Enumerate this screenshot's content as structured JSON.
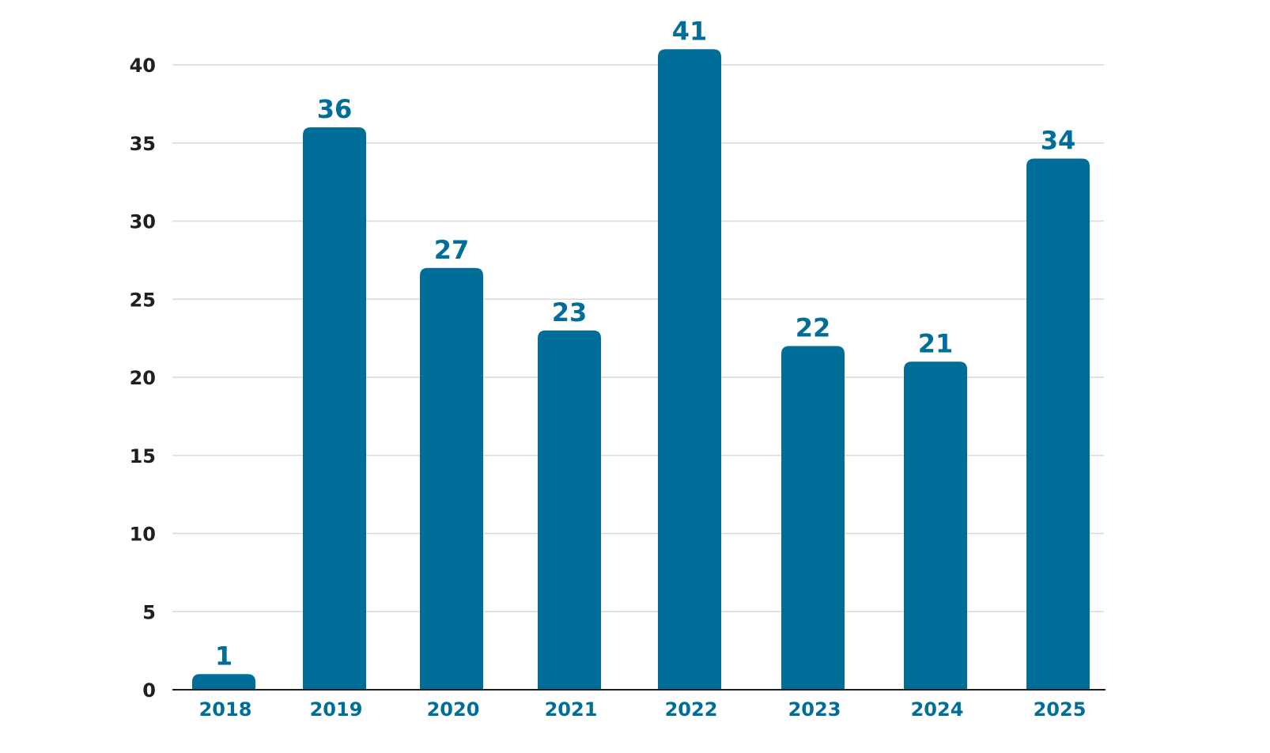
{
  "chart_data": {
    "type": "bar",
    "title": "",
    "xlabel": "",
    "ylabel": "",
    "categories": [
      "2018",
      "2019",
      "2020",
      "2021",
      "2022",
      "2023",
      "2024",
      "2025"
    ],
    "values": [
      1,
      36,
      27,
      23,
      41,
      22,
      21,
      34
    ],
    "data_labels": [
      "1",
      "36",
      "27",
      "23",
      "41",
      "22",
      "21",
      "34"
    ],
    "y_ticks": [
      0,
      5,
      10,
      15,
      20,
      25,
      30,
      35,
      40
    ],
    "y_tick_labels": [
      "0",
      "5",
      "10",
      "15",
      "20",
      "25",
      "30",
      "35",
      "40"
    ],
    "ylim": [
      0,
      41
    ],
    "grid": true,
    "legend": "none",
    "colors": {
      "bar": "#006e99",
      "label": "#006e99",
      "axis_text": "#1f1f1f",
      "gridline": "#d9d9d9"
    }
  }
}
